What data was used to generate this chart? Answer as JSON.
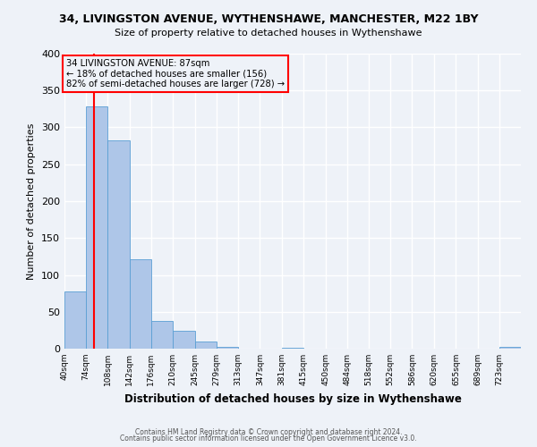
{
  "title": "34, LIVINGSTON AVENUE, WYTHENSHAWE, MANCHESTER, M22 1BY",
  "subtitle": "Size of property relative to detached houses in Wythenshawe",
  "xlabel": "Distribution of detached houses by size in Wythenshawe",
  "ylabel": "Number of detached properties",
  "bin_labels": [
    "40sqm",
    "74sqm",
    "108sqm",
    "142sqm",
    "176sqm",
    "210sqm",
    "245sqm",
    "279sqm",
    "313sqm",
    "347sqm",
    "381sqm",
    "415sqm",
    "450sqm",
    "484sqm",
    "518sqm",
    "552sqm",
    "586sqm",
    "620sqm",
    "655sqm",
    "689sqm",
    "723sqm"
  ],
  "bin_edges": [
    40,
    74,
    108,
    142,
    176,
    210,
    245,
    279,
    313,
    347,
    381,
    415,
    450,
    484,
    518,
    552,
    586,
    620,
    655,
    689,
    723,
    757
  ],
  "bar_heights": [
    77,
    329,
    283,
    121,
    37,
    24,
    10,
    3,
    0,
    0,
    1,
    0,
    0,
    0,
    0,
    0,
    0,
    0,
    0,
    0,
    3
  ],
  "bar_color": "#aec6e8",
  "bar_edgecolor": "#5a9fd4",
  "red_line_x": 87,
  "annotation_title": "34 LIVINGSTON AVENUE: 87sqm",
  "annotation_line1": "← 18% of detached houses are smaller (156)",
  "annotation_line2": "82% of semi-detached houses are larger (728) →",
  "ylim": [
    0,
    400
  ],
  "yticks": [
    0,
    50,
    100,
    150,
    200,
    250,
    300,
    350,
    400
  ],
  "footer1": "Contains HM Land Registry data © Crown copyright and database right 2024.",
  "footer2": "Contains public sector information licensed under the Open Government Licence v3.0.",
  "bg_color": "#eef2f8",
  "grid_color": "#ffffff"
}
